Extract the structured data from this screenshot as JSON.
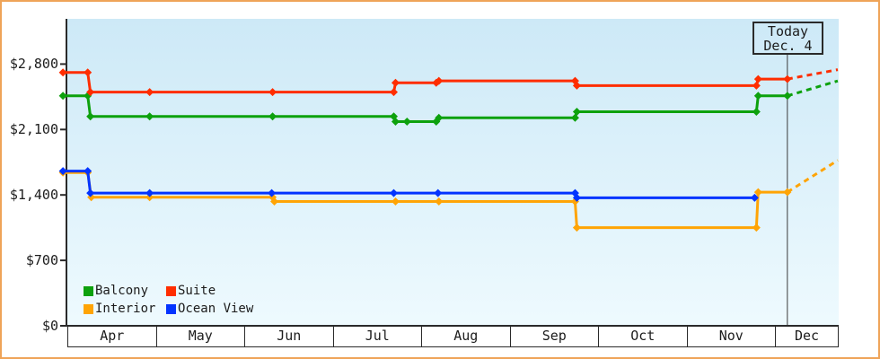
{
  "window": {
    "frame_border_color": "#efa458",
    "background_color": "#ffffff"
  },
  "chart_data": {
    "type": "line",
    "title": "",
    "xlabel": "",
    "ylabel": "",
    "grid": false,
    "legend_position": "bottom-left",
    "axis_color": "#2a2a2a",
    "plot_bg": {
      "top": "#cde9f7",
      "bottom": "#eefafe"
    },
    "y_axis": {
      "tick_labels": [
        "$0",
        "$700",
        "$1,400",
        "$2,100",
        "$2,800"
      ],
      "tick_values": [
        0,
        700,
        1400,
        2100,
        2800
      ],
      "ylim": [
        0,
        3300
      ]
    },
    "x_axis": {
      "months": [
        "Apr",
        "May",
        "Jun",
        "Jul",
        "Aug",
        "Sep",
        "Oct",
        "Nov",
        "Dec"
      ]
    },
    "today_marker": {
      "line1": "Today",
      "line2": "Dec. 4",
      "month_index": 8.11,
      "line_color": "#3c3c3c"
    },
    "series": [
      {
        "name": "Balcony",
        "color": "#0da10d",
        "points": [
          [
            -0.08,
            2460
          ],
          [
            0.2,
            2460
          ],
          [
            0.23,
            2240
          ],
          [
            0.9,
            2240
          ],
          [
            2.29,
            2240
          ],
          [
            3.66,
            2240
          ],
          [
            3.68,
            2185
          ],
          [
            3.81,
            2185
          ],
          [
            4.14,
            2185
          ],
          [
            4.17,
            2225
          ],
          [
            5.71,
            2225
          ],
          [
            5.73,
            2290
          ],
          [
            7.76,
            2290
          ],
          [
            7.78,
            2460
          ],
          [
            8.11,
            2460
          ]
        ],
        "projection": [
          [
            8.11,
            2460
          ],
          [
            8.68,
            2620
          ]
        ]
      },
      {
        "name": "Suite",
        "color": "#ff2d00",
        "points": [
          [
            -0.08,
            2710
          ],
          [
            0.2,
            2710
          ],
          [
            0.23,
            2500
          ],
          [
            0.9,
            2500
          ],
          [
            2.29,
            2500
          ],
          [
            3.66,
            2500
          ],
          [
            3.68,
            2600
          ],
          [
            4.14,
            2600
          ],
          [
            4.17,
            2620
          ],
          [
            5.71,
            2620
          ],
          [
            5.73,
            2570
          ],
          [
            7.76,
            2570
          ],
          [
            7.78,
            2640
          ],
          [
            8.11,
            2640
          ]
        ],
        "projection": [
          [
            8.11,
            2640
          ],
          [
            8.68,
            2740
          ]
        ]
      },
      {
        "name": "Interior",
        "color": "#ffa405",
        "points": [
          [
            -0.08,
            1640
          ],
          [
            0.2,
            1640
          ],
          [
            0.24,
            1375
          ],
          [
            0.9,
            1375
          ],
          [
            2.29,
            1375
          ],
          [
            2.31,
            1330
          ],
          [
            3.68,
            1330
          ],
          [
            4.17,
            1330
          ],
          [
            5.71,
            1330
          ],
          [
            5.73,
            1050
          ],
          [
            7.76,
            1050
          ],
          [
            7.78,
            1430
          ],
          [
            8.11,
            1430
          ]
        ],
        "projection": [
          [
            8.11,
            1430
          ],
          [
            8.68,
            1770
          ]
        ]
      },
      {
        "name": "Ocean View",
        "color": "#0334ff",
        "points": [
          [
            -0.08,
            1655
          ],
          [
            0.2,
            1655
          ],
          [
            0.23,
            1420
          ],
          [
            0.9,
            1420
          ],
          [
            2.28,
            1420
          ],
          [
            3.66,
            1420
          ],
          [
            4.16,
            1420
          ],
          [
            5.71,
            1420
          ],
          [
            5.73,
            1370
          ],
          [
            7.74,
            1370
          ]
        ]
      }
    ],
    "draw_order": [
      2,
      3,
      0,
      1
    ]
  }
}
